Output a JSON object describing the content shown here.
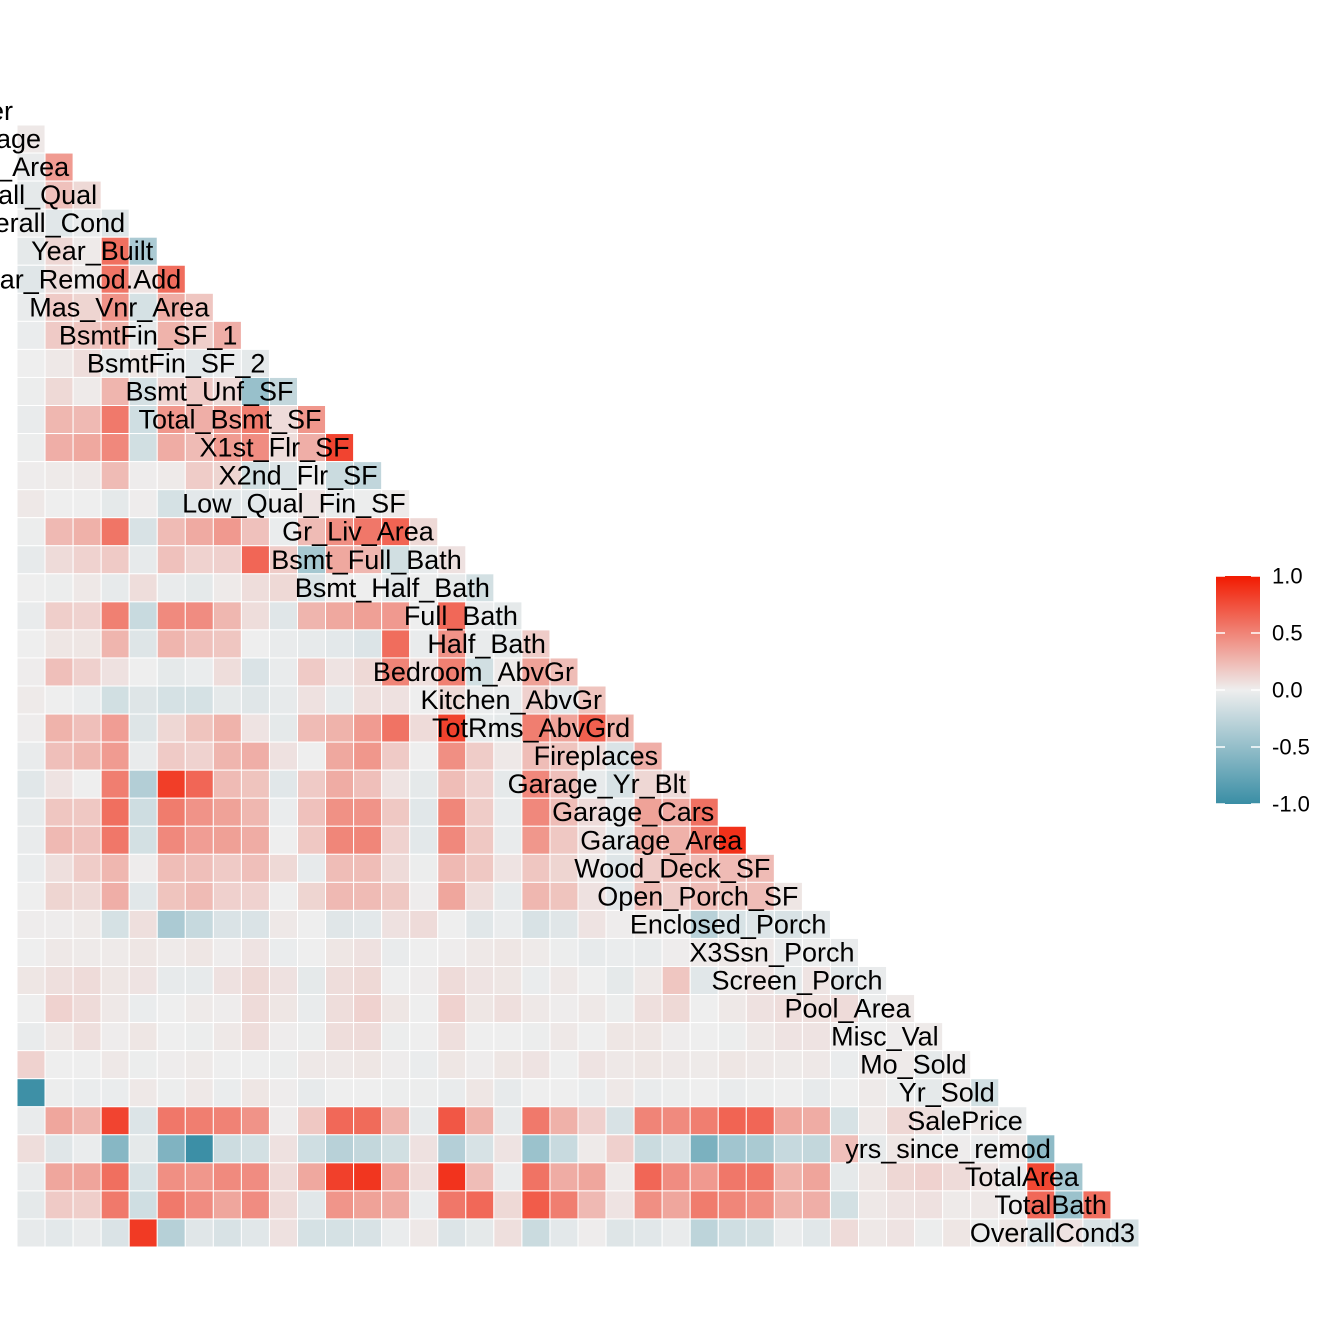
{
  "chart_data": {
    "type": "heatmap",
    "title": "",
    "variables": [
      "Order",
      "Lot_Frontage",
      "Lot_Area",
      "Overall_Qual",
      "Overall_Cond",
      "Year_Built",
      "Year_Remod.Add",
      "Mas_Vnr_Area",
      "BsmtFin_SF_1",
      "BsmtFin_SF_2",
      "Bsmt_Unf_SF",
      "Total_Bsmt_SF",
      "X1st_Flr_SF",
      "X2nd_Flr_SF",
      "Low_Qual_Fin_SF",
      "Gr_Liv_Area",
      "Bsmt_Full_Bath",
      "Bsmt_Half_Bath",
      "Full_Bath",
      "Half_Bath",
      "Bedroom_AbvGr",
      "Kitchen_AbvGr",
      "TotRms_AbvGrd",
      "Fireplaces",
      "Garage_Yr_Blt",
      "Garage_Cars",
      "Garage_Area",
      "Wood_Deck_SF",
      "Open_Porch_SF",
      "Enclosed_Porch",
      "X3Ssn_Porch",
      "Screen_Porch",
      "Pool_Area",
      "Misc_Val",
      "Mo_Sold",
      "Yr_Sold",
      "SalePrice",
      "yrs_since_remod",
      "TotalArea",
      "TotalBath",
      "OverallCond3"
    ],
    "visible_labels": [
      "er",
      "age",
      "_Area",
      "all_Qual",
      "erall_Cond",
      "Year_Built",
      "ar_Remod.Add",
      "Mas_Vnr_Area",
      "BsmtFin_SF_1",
      "BsmtFin_SF_2",
      "Bsmt_Unf_SF",
      "Total_Bsmt_SF",
      "X1st_Flr_SF",
      "X2nd_Flr_SF",
      "Low_Qual_Fin_SF",
      "Gr_Liv_Area",
      "Bsmt_Full_Bath",
      "Bsmt_Half_Bath",
      "Full_Bath",
      "Half_Bath",
      "Bedroom_AbvGr",
      "Kitchen_AbvGr",
      "TotRms_AbvGrd",
      "Fireplaces",
      "Garage_Yr_Blt",
      "Garage_Cars",
      "Garage_Area",
      "Wood_Deck_SF",
      "Open_Porch_SF",
      "Enclosed_Porch",
      "X3Ssn_Porch",
      "Screen_Porch",
      "Pool_Area",
      "Misc_Val",
      "Mo_Sold",
      "Yr_Sold",
      "SalePrice",
      "yrs_since_remod",
      "TotalArea",
      "TotalBath",
      "OverallCond3"
    ],
    "lower_triangle": true,
    "legend": {
      "position": "right",
      "limits": [
        -1.0,
        1.0
      ],
      "ticks": [
        "1.0",
        "0.5",
        "0.0",
        "-0.5",
        "-1.0"
      ],
      "tick_values": [
        1.0,
        0.5,
        0.0,
        -0.5,
        -1.0
      ],
      "low_color": "#3a8ea5",
      "mid_color": "#eeeeee",
      "high_color": "#f21a00"
    },
    "correlations": {
      "Lot_Frontage": [
        0.03
      ],
      "Lot_Area": [
        -0.03,
        0.39
      ],
      "Overall_Qual": [
        -0.05,
        0.21,
        0.1
      ],
      "Overall_Cond": [
        -0.01,
        -0.07,
        -0.03,
        -0.09
      ],
      "Year_Built": [
        -0.05,
        0.11,
        0.02,
        0.6,
        -0.37
      ],
      "Year_Remod.Add": [
        -0.08,
        0.08,
        0.02,
        0.57,
        0.05,
        0.61
      ],
      "Mas_Vnr_Area": [
        -0.03,
        0.17,
        0.12,
        0.43,
        -0.14,
        0.31,
        0.19
      ],
      "BsmtFin_SF_1": [
        -0.02,
        0.17,
        0.19,
        0.28,
        -0.05,
        0.28,
        0.15,
        0.3
      ],
      "BsmtFin_SF_2": [
        0.0,
        0.03,
        0.08,
        -0.04,
        0.04,
        -0.03,
        -0.06,
        -0.02,
        -0.05
      ],
      "Bsmt_Unf_SF": [
        -0.01,
        0.1,
        0.02,
        0.27,
        -0.14,
        0.13,
        0.17,
        0.09,
        -0.48,
        -0.24
      ],
      "Total_Bsmt_SF": [
        -0.03,
        0.26,
        0.25,
        0.55,
        -0.17,
        0.41,
        0.3,
        0.4,
        0.54,
        0.09,
        0.41
      ],
      "X1st_Flr_SF": [
        -0.01,
        0.3,
        0.33,
        0.48,
        -0.16,
        0.31,
        0.24,
        0.39,
        0.46,
        0.08,
        0.3,
        0.8
      ],
      "X2nd_Flr_SF": [
        0.01,
        0.02,
        0.03,
        0.24,
        0.01,
        0.02,
        0.16,
        0.12,
        -0.16,
        -0.1,
        0.0,
        -0.2,
        -0.25
      ],
      "Low_Qual_Fin_SF": [
        0.03,
        0.0,
        0.0,
        -0.05,
        0.01,
        -0.14,
        -0.06,
        -0.06,
        -0.06,
        0.0,
        0.05,
        -0.03,
        -0.01,
        0.02
      ],
      "Gr_Liv_Area": [
        -0.01,
        0.25,
        0.29,
        0.57,
        -0.12,
        0.24,
        0.32,
        0.4,
        0.21,
        -0.02,
        0.24,
        0.45,
        0.56,
        0.65,
        0.1
      ],
      "Bsmt_Full_Bath": [
        -0.04,
        0.09,
        0.13,
        0.17,
        -0.04,
        0.21,
        0.13,
        0.14,
        0.64,
        0.16,
        -0.4,
        0.33,
        0.26,
        -0.16,
        -0.04,
        0.06
      ],
      "Bsmt_Half_Bath": [
        0.0,
        -0.01,
        0.03,
        -0.04,
        0.08,
        -0.03,
        -0.05,
        0.02,
        0.08,
        0.1,
        -0.11,
        0.01,
        0.0,
        -0.06,
        -0.01,
        -0.04,
        -0.15
      ],
      "Full_Bath": [
        -0.03,
        0.15,
        0.13,
        0.52,
        -0.21,
        0.47,
        0.46,
        0.26,
        0.08,
        -0.08,
        0.27,
        0.33,
        0.37,
        0.4,
        0.0,
        0.63,
        -0.02,
        -0.05
      ],
      "Half_Bath": [
        0.0,
        0.04,
        0.04,
        0.27,
        -0.09,
        0.27,
        0.21,
        0.19,
        0.0,
        -0.03,
        -0.04,
        -0.06,
        -0.1,
        0.61,
        -0.03,
        0.43,
        -0.03,
        -0.05,
        0.16
      ],
      "Bedroom_AbvGr": [
        0.01,
        0.22,
        0.14,
        0.06,
        0.0,
        -0.05,
        -0.02,
        0.08,
        -0.11,
        -0.03,
        0.17,
        0.05,
        0.1,
        0.5,
        0.07,
        0.52,
        -0.16,
        0.02,
        0.36,
        0.23
      ],
      "Kitchen_AbvGr": [
        0.02,
        0.0,
        -0.02,
        -0.16,
        -0.09,
        -0.14,
        -0.14,
        -0.05,
        -0.08,
        -0.04,
        0.06,
        -0.04,
        0.07,
        0.06,
        0.0,
        0.1,
        -0.02,
        -0.03,
        0.14,
        -0.06,
        0.2
      ],
      "TotRms_AbvGrd": [
        0.01,
        0.28,
        0.22,
        0.38,
        -0.09,
        0.11,
        0.2,
        0.28,
        0.05,
        -0.05,
        0.24,
        0.28,
        0.39,
        0.58,
        0.09,
        0.81,
        -0.04,
        -0.05,
        0.53,
        0.35,
        0.67,
        0.28
      ],
      "Fireplaces": [
        -0.03,
        0.22,
        0.26,
        0.39,
        -0.03,
        0.17,
        0.13,
        0.27,
        0.3,
        0.06,
        0.0,
        0.33,
        0.41,
        0.17,
        0.0,
        0.45,
        0.16,
        0.03,
        0.23,
        0.2,
        0.08,
        -0.11,
        0.3
      ],
      "Garage_Yr_Blt": [
        -0.07,
        0.05,
        0.0,
        0.53,
        -0.33,
        0.83,
        0.64,
        0.24,
        0.2,
        -0.07,
        0.17,
        0.31,
        0.22,
        0.05,
        -0.05,
        0.23,
        0.13,
        -0.05,
        0.48,
        0.22,
        -0.04,
        -0.13,
        0.11,
        0.09
      ],
      "Garage_Cars": [
        -0.04,
        0.19,
        0.18,
        0.6,
        -0.18,
        0.54,
        0.43,
        0.36,
        0.26,
        -0.02,
        0.21,
        0.44,
        0.43,
        0.18,
        -0.07,
        0.49,
        0.16,
        -0.03,
        0.48,
        0.23,
        0.09,
        -0.04,
        0.36,
        0.32,
        0.59
      ],
      "Garage_Area": [
        -0.03,
        0.25,
        0.21,
        0.56,
        -0.15,
        0.48,
        0.38,
        0.37,
        0.31,
        0.0,
        0.18,
        0.49,
        0.49,
        0.13,
        -0.06,
        0.48,
        0.18,
        -0.03,
        0.41,
        0.18,
        0.07,
        -0.06,
        0.33,
        0.29,
        0.56,
        0.89
      ],
      "Wood_Deck_SF": [
        -0.02,
        0.07,
        0.16,
        0.26,
        0.01,
        0.23,
        0.22,
        0.17,
        0.22,
        0.1,
        -0.04,
        0.23,
        0.23,
        0.09,
        -0.01,
        0.25,
        0.18,
        0.05,
        0.19,
        0.12,
        0.03,
        -0.09,
        0.16,
        0.23,
        0.24,
        0.24,
        0.24
      ],
      "Open_Porch_SF": [
        0.0,
        0.12,
        0.1,
        0.3,
        -0.07,
        0.2,
        0.24,
        0.14,
        0.13,
        0.0,
        0.12,
        0.25,
        0.24,
        0.18,
        0.01,
        0.34,
        0.08,
        -0.04,
        0.26,
        0.2,
        0.06,
        -0.06,
        0.23,
        0.16,
        0.23,
        0.2,
        0.23,
        0.04
      ],
      "Enclosed_Porch": [
        0.01,
        0.01,
        0.02,
        -0.14,
        0.07,
        -0.37,
        -0.22,
        -0.11,
        -0.11,
        0.03,
        0.0,
        -0.08,
        -0.06,
        0.06,
        0.09,
        0.0,
        -0.07,
        -0.02,
        -0.12,
        -0.08,
        0.05,
        0.01,
        0.02,
        0.0,
        -0.3,
        -0.13,
        -0.1,
        -0.12,
        -0.06
      ],
      "X3Ssn_Porch": [
        0.0,
        0.03,
        0.02,
        0.02,
        0.04,
        0.02,
        0.04,
        0.01,
        0.05,
        -0.02,
        0.0,
        0.04,
        0.06,
        -0.03,
        0.0,
        0.01,
        0.03,
        0.04,
        0.02,
        -0.01,
        -0.04,
        -0.02,
        -0.03,
        0.01,
        0.02,
        0.03,
        0.03,
        -0.03,
        -0.01,
        -0.03
      ],
      "Screen_Porch": [
        0.04,
        0.07,
        0.09,
        0.04,
        0.05,
        -0.04,
        -0.04,
        0.06,
        0.1,
        0.06,
        -0.05,
        0.08,
        0.1,
        0.0,
        0.01,
        0.09,
        0.05,
        0.04,
        -0.02,
        0.03,
        0.0,
        -0.05,
        0.03,
        0.19,
        -0.07,
        0.02,
        0.05,
        -0.05,
        0.05,
        -0.07,
        -0.03
      ],
      "Pool_Area": [
        0.0,
        0.13,
        0.09,
        0.03,
        -0.02,
        0.0,
        0.02,
        0.01,
        0.09,
        0.04,
        -0.03,
        0.08,
        0.13,
        0.04,
        0.0,
        0.13,
        0.04,
        0.07,
        0.03,
        0.01,
        0.03,
        -0.01,
        0.07,
        0.1,
        0.0,
        0.03,
        0.06,
        0.08,
        0.07,
        0.09,
        -0.01,
        0.03
      ],
      "Misc_Val": [
        -0.03,
        0.03,
        0.07,
        0.01,
        0.04,
        0.0,
        -0.01,
        0.03,
        0.08,
        0.01,
        -0.01,
        0.08,
        0.09,
        -0.01,
        0.0,
        0.07,
        0.0,
        0.0,
        -0.01,
        0.03,
        0.0,
        0.04,
        0.04,
        0.01,
        0.0,
        -0.01,
        0.03,
        0.05,
        0.05,
        0.01,
        0.0,
        0.01,
        0.02
      ],
      "Mo_Sold": [
        0.13,
        0.0,
        0.0,
        0.03,
        -0.01,
        0.01,
        0.02,
        0.0,
        0.0,
        -0.01,
        0.03,
        0.03,
        0.04,
        0.01,
        -0.02,
        0.04,
        0.01,
        0.04,
        0.05,
        0.0,
        0.05,
        0.03,
        0.04,
        0.03,
        0.02,
        0.04,
        0.03,
        0.02,
        0.03,
        -0.02,
        0.03,
        0.02,
        -0.05,
        0.01
      ],
      "Yr_Sold": [
        -0.98,
        -0.01,
        -0.02,
        -0.02,
        0.03,
        -0.01,
        0.03,
        -0.02,
        0.04,
        0.01,
        -0.04,
        0.0,
        0.0,
        -0.01,
        -0.01,
        -0.03,
        0.04,
        -0.04,
        0.0,
        0.0,
        -0.02,
        0.03,
        -0.03,
        -0.01,
        0.0,
        -0.03,
        -0.01,
        0.0,
        -0.04,
        0.0,
        0.02,
        -0.01,
        -0.05,
        0.01,
        -0.16
      ],
      "SalePrice": [
        -0.03,
        0.34,
        0.27,
        0.8,
        -0.1,
        0.56,
        0.53,
        0.51,
        0.43,
        0.01,
        0.18,
        0.63,
        0.62,
        0.27,
        -0.04,
        0.71,
        0.28,
        -0.04,
        0.55,
        0.29,
        0.14,
        -0.12,
        0.5,
        0.47,
        0.53,
        0.65,
        0.64,
        0.33,
        0.31,
        -0.13,
        0.03,
        0.11,
        0.07,
        -0.02,
        0.03,
        -0.03
      ],
      "yrs_since_remod": [
        0.08,
        -0.08,
        -0.02,
        -0.57,
        -0.05,
        -0.61,
        -0.99,
        -0.19,
        -0.15,
        0.06,
        -0.17,
        -0.3,
        -0.24,
        -0.16,
        0.06,
        -0.32,
        -0.13,
        0.05,
        -0.46,
        -0.21,
        0.02,
        0.14,
        -0.2,
        -0.13,
        -0.64,
        -0.43,
        -0.38,
        -0.22,
        -0.24,
        0.22,
        -0.04,
        0.04,
        -0.02,
        0.01,
        -0.02,
        0.03,
        -0.53
      ],
      "TotalArea": [
        -0.03,
        0.34,
        0.35,
        0.6,
        -0.13,
        0.45,
        0.41,
        0.47,
        0.46,
        0.09,
        0.33,
        0.82,
        0.87,
        0.35,
        0.07,
        0.88,
        0.23,
        -0.02,
        0.58,
        0.31,
        0.34,
        0.02,
        0.64,
        0.46,
        0.4,
        0.56,
        0.57,
        0.28,
        0.35,
        -0.05,
        0.04,
        0.11,
        0.13,
        0.09,
        0.05,
        -0.02,
        0.79,
        -0.41
      ],
      "TotalBath": [
        -0.05,
        0.17,
        0.15,
        0.55,
        -0.17,
        0.55,
        0.46,
        0.34,
        0.46,
        0.09,
        -0.07,
        0.42,
        0.36,
        0.32,
        -0.02,
        0.56,
        0.63,
        0.1,
        0.69,
        0.53,
        0.25,
        0.05,
        0.45,
        0.34,
        0.54,
        0.49,
        0.45,
        0.28,
        0.3,
        -0.15,
        0.03,
        0.05,
        0.06,
        0.02,
        0.03,
        0.0,
        0.63,
        -0.46,
        0.6
      ],
      "OverallCond3": [
        -0.04,
        -0.06,
        -0.03,
        -0.11,
        0.85,
        -0.31,
        -0.08,
        -0.12,
        -0.07,
        0.06,
        -0.14,
        -0.14,
        -0.12,
        -0.02,
        0.03,
        -0.1,
        -0.05,
        0.07,
        -0.2,
        -0.06,
        0.01,
        -0.09,
        -0.07,
        -0.03,
        -0.27,
        -0.17,
        -0.15,
        -0.02,
        -0.07,
        0.09,
        0.03,
        0.05,
        -0.01,
        0.04,
        -0.01,
        0.04,
        -0.1,
        0.05,
        -0.11,
        -0.14
      ]
    }
  }
}
